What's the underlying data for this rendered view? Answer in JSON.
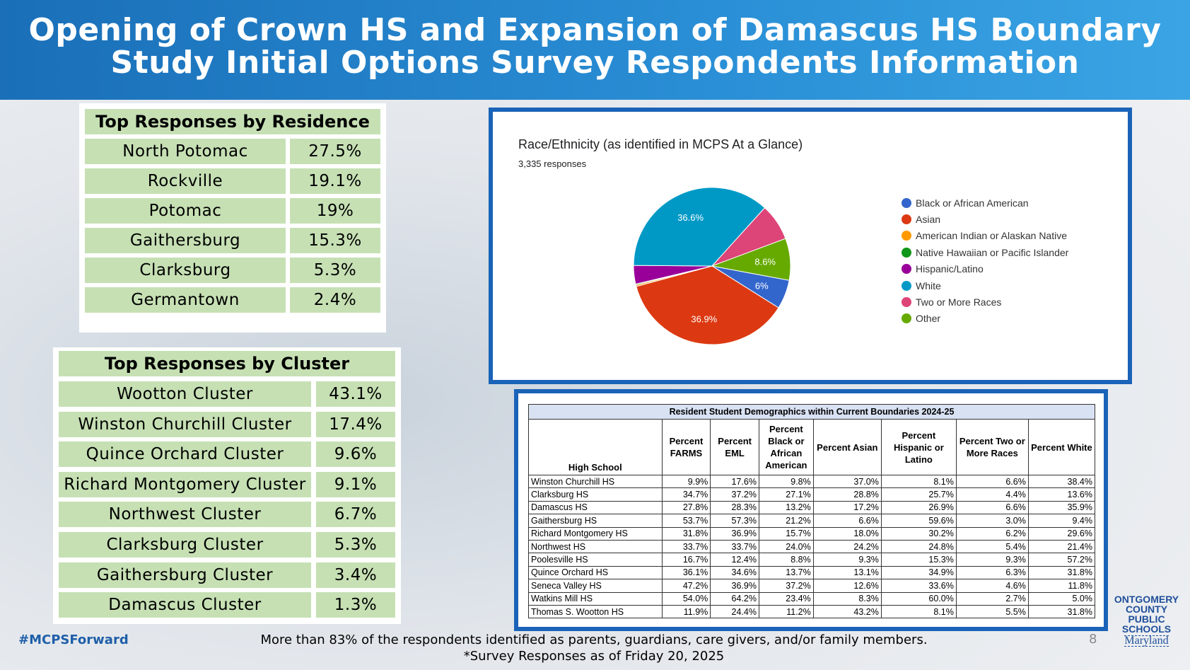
{
  "header": {
    "title_line1": "Opening of Crown HS and Expansion of Damascus HS Boundary",
    "title_line2": "Study Initial Options Survey Respondents Information"
  },
  "residence": {
    "title": "Top Responses by Residence",
    "rows": [
      {
        "label": "North Potomac",
        "value": "27.5%"
      },
      {
        "label": "Rockville",
        "value": "19.1%"
      },
      {
        "label": "Potomac",
        "value": "19%"
      },
      {
        "label": "Gaithersburg",
        "value": "15.3%"
      },
      {
        "label": "Clarksburg",
        "value": "5.3%"
      },
      {
        "label": "Germantown",
        "value": "2.4%"
      }
    ]
  },
  "cluster": {
    "title": "Top Responses by Cluster",
    "rows": [
      {
        "label": "Wootton Cluster",
        "value": "43.1%"
      },
      {
        "label": "Winston Churchill Cluster",
        "value": "17.4%"
      },
      {
        "label": "Quince Orchard Cluster",
        "value": "9.6%"
      },
      {
        "label": "Richard Montgomery Cluster",
        "value": "9.1%"
      },
      {
        "label": "Northwest Cluster",
        "value": "6.7%"
      },
      {
        "label": "Clarksburg Cluster",
        "value": "5.3%"
      },
      {
        "label": "Gaithersburg Cluster",
        "value": "3.4%"
      },
      {
        "label": "Damascus Cluster",
        "value": "1.3%"
      }
    ]
  },
  "chart_data": {
    "type": "pie",
    "title": "Race/Ethnicity (as identified in MCPS At a Glance)",
    "subtitle": "3,335 responses",
    "legend_position": "right",
    "slices": [
      {
        "name": "Black or African American",
        "value": 6.0,
        "label": "6%",
        "color": "#3366cc"
      },
      {
        "name": "Asian",
        "value": 36.9,
        "label": "36.9%",
        "color": "#dc3912"
      },
      {
        "name": "American Indian or Alaskan Native",
        "value": 0.3,
        "label": "",
        "color": "#ff9900"
      },
      {
        "name": "Native Hawaiian or Pacific Islander",
        "value": 0.2,
        "label": "",
        "color": "#109618"
      },
      {
        "name": "Hispanic/Latino",
        "value": 3.8,
        "label": "",
        "color": "#990099"
      },
      {
        "name": "White",
        "value": 36.6,
        "label": "36.6%",
        "color": "#0099c6"
      },
      {
        "name": "Two or More Races",
        "value": 7.6,
        "label": "",
        "color": "#dd4477"
      },
      {
        "name": "Other",
        "value": 8.6,
        "label": "8.6%",
        "color": "#66aa00"
      }
    ]
  },
  "demographics": {
    "caption": "Resident Student Demographics within Current Boundaries 2024-25",
    "headers": [
      "High School",
      "Percent FARMS",
      "Percent EML",
      "Percent Black or African American",
      "Percent Asian",
      "Percent Hispanic or Latino",
      "Percent Two or More Races",
      "Percent White"
    ],
    "rows": [
      [
        "Winston Churchill HS",
        "9.9%",
        "17.6%",
        "9.8%",
        "37.0%",
        "8.1%",
        "6.6%",
        "38.4%"
      ],
      [
        "Clarksburg HS",
        "34.7%",
        "37.2%",
        "27.1%",
        "28.8%",
        "25.7%",
        "4.4%",
        "13.6%"
      ],
      [
        "Damascus HS",
        "27.8%",
        "28.3%",
        "13.2%",
        "17.2%",
        "26.9%",
        "6.6%",
        "35.9%"
      ],
      [
        "Gaithersburg HS",
        "53.7%",
        "57.3%",
        "21.2%",
        "6.6%",
        "59.6%",
        "3.0%",
        "9.4%"
      ],
      [
        "Richard Montgomery HS",
        "31.8%",
        "36.9%",
        "15.7%",
        "18.0%",
        "30.2%",
        "6.2%",
        "29.6%"
      ],
      [
        "Northwest HS",
        "33.7%",
        "33.7%",
        "24.0%",
        "24.2%",
        "24.8%",
        "5.4%",
        "21.4%"
      ],
      [
        "Poolesville HS",
        "16.7%",
        "12.4%",
        "8.8%",
        "9.3%",
        "15.3%",
        "9.3%",
        "57.2%"
      ],
      [
        "Quince Orchard HS",
        "36.1%",
        "34.6%",
        "13.7%",
        "13.1%",
        "34.9%",
        "6.3%",
        "31.8%"
      ],
      [
        "Seneca Valley HS",
        "47.2%",
        "36.9%",
        "37.2%",
        "12.6%",
        "33.6%",
        "4.6%",
        "11.8%"
      ],
      [
        "Watkins Mill HS",
        "54.0%",
        "64.2%",
        "23.4%",
        "8.3%",
        "60.0%",
        "2.7%",
        "5.0%"
      ],
      [
        "Thomas S. Wootton HS",
        "11.9%",
        "24.4%",
        "11.2%",
        "43.2%",
        "8.1%",
        "5.5%",
        "31.8%"
      ]
    ]
  },
  "footer": {
    "hashtag": "#MCPSForward",
    "note_line1": "More than  83% of the respondents identified as parents, guardians, care givers, and/or family members.",
    "note_line2": "*Survey Responses as of Friday 20, 2025",
    "page_number": "8",
    "logo_lines": [
      "ONTGOMERY",
      "COUNTY",
      "PUBLIC",
      "SCHOOLS"
    ],
    "logo_state": "Maryland"
  }
}
